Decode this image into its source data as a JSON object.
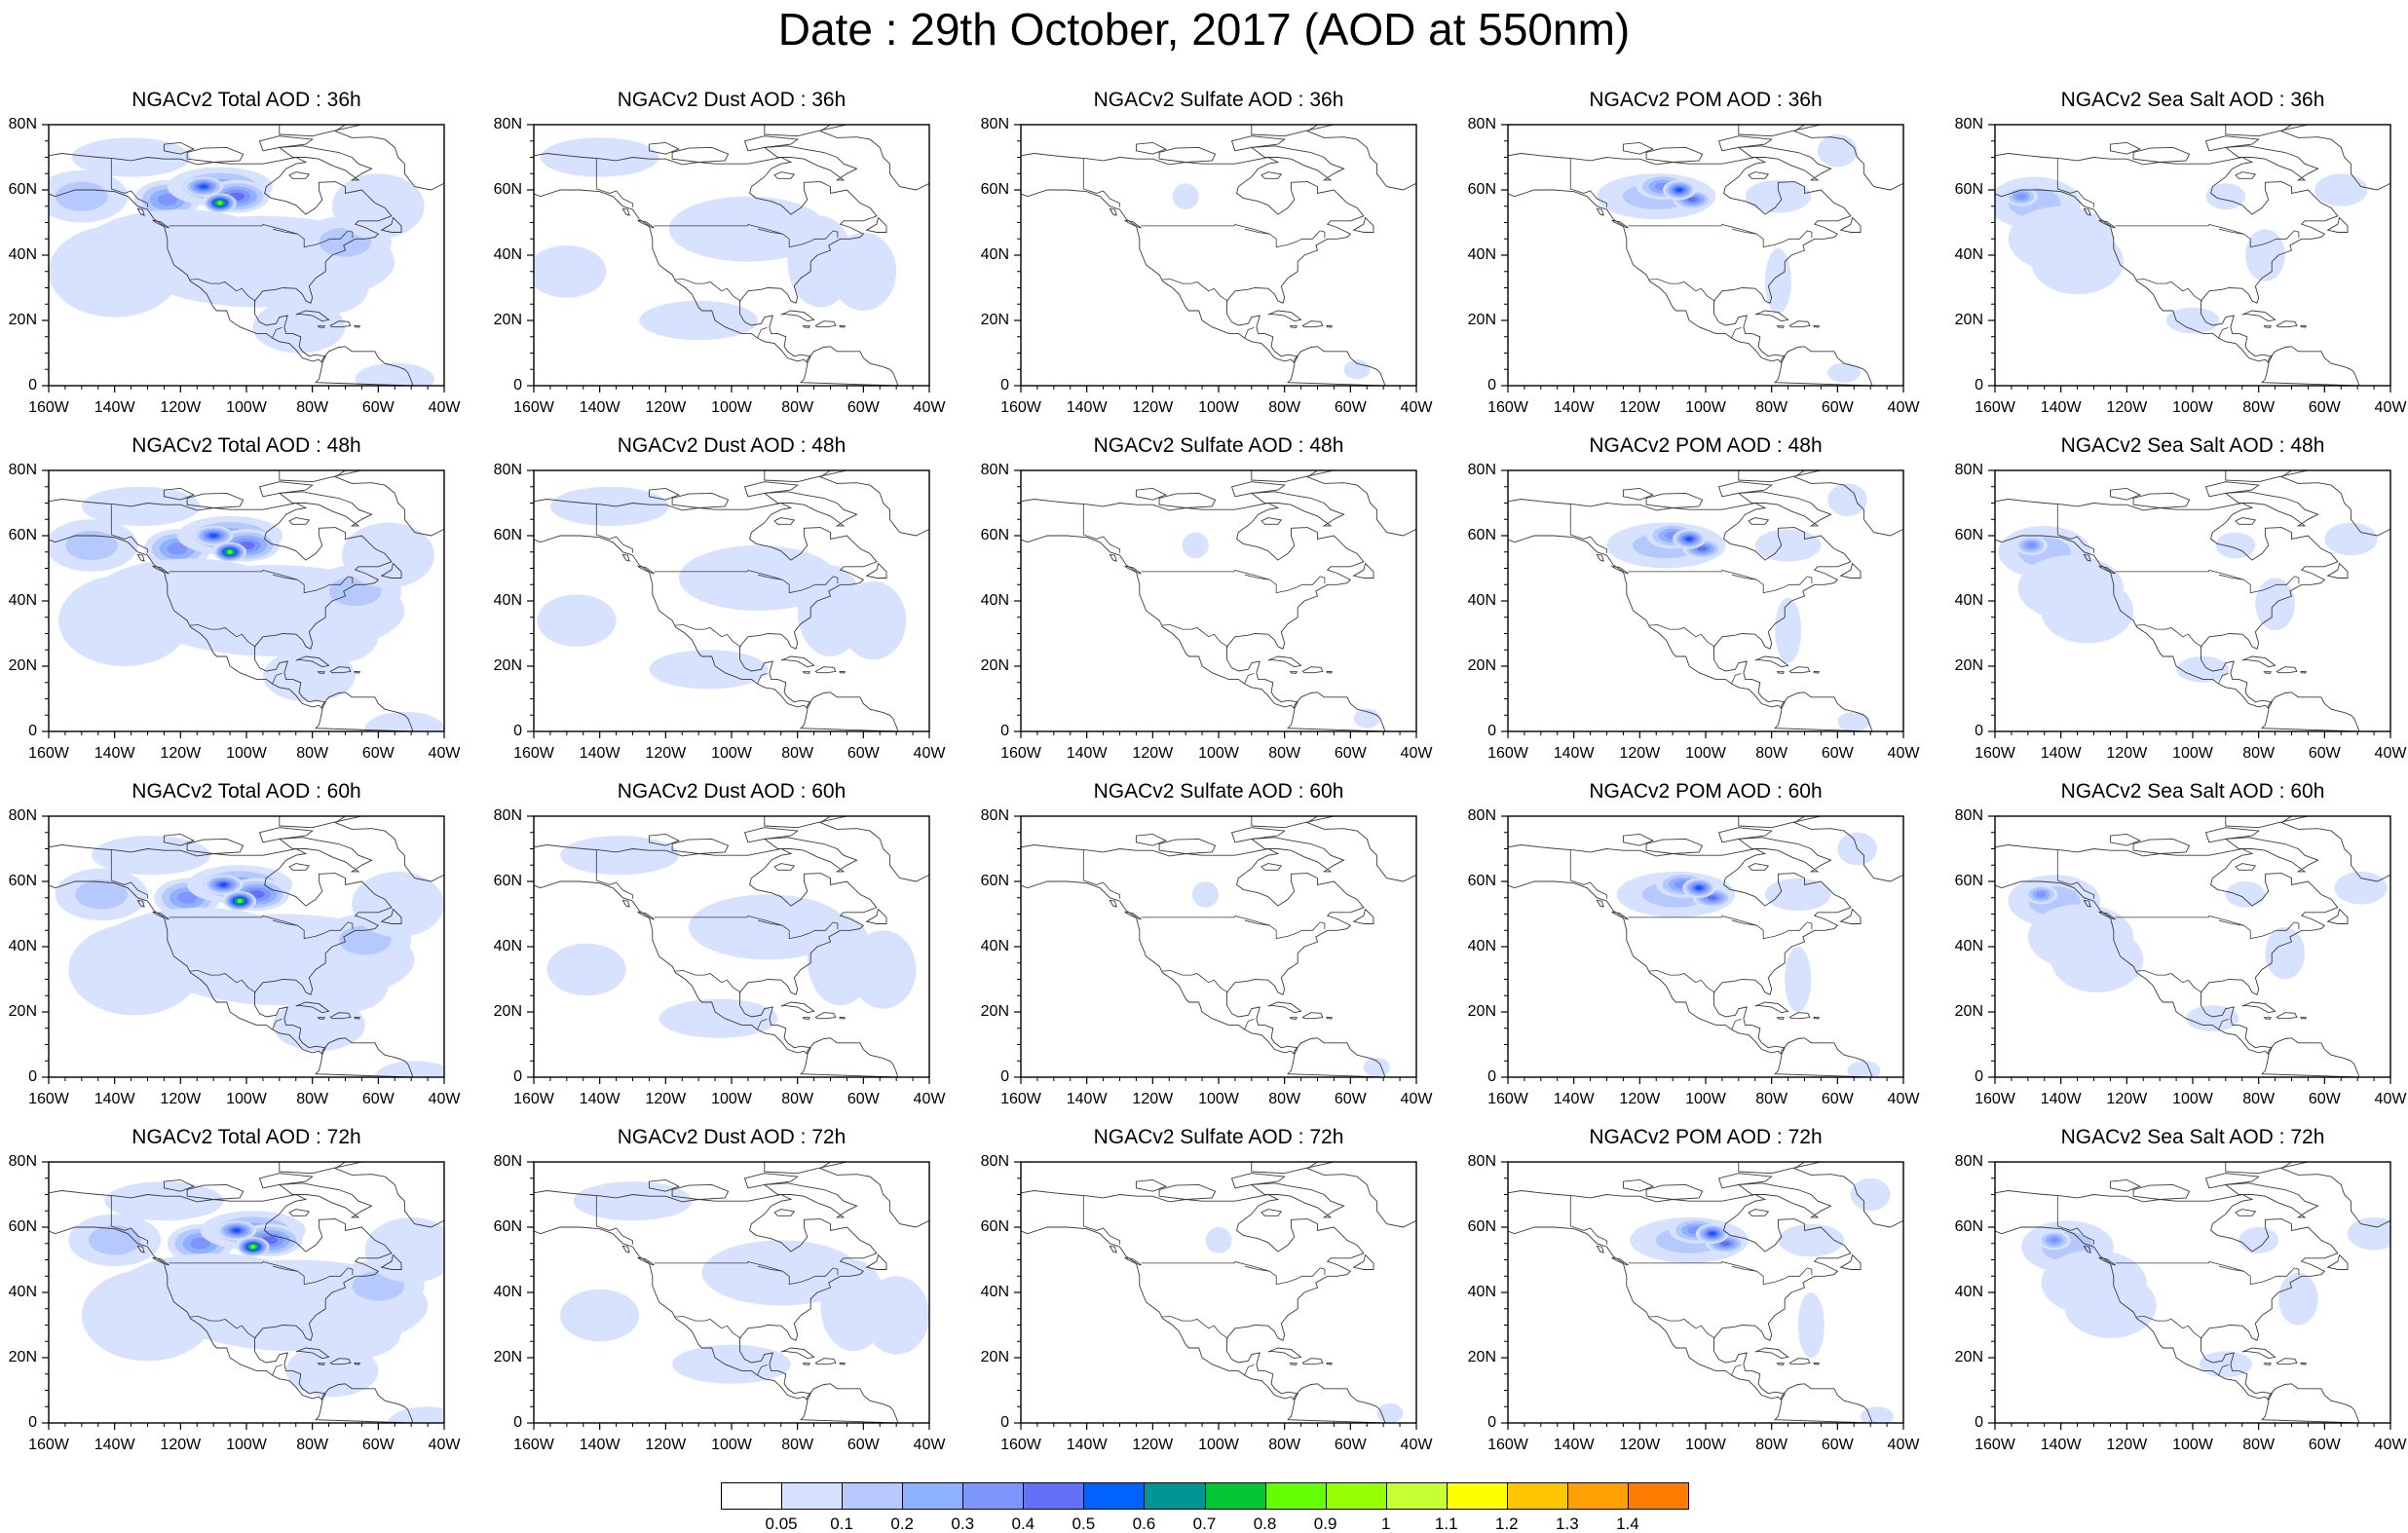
{
  "title": "Date : 29th October, 2017 (AOD at 550nm)",
  "y_ticks": [
    "80N",
    "60N",
    "40N",
    "20N",
    "0"
  ],
  "x_ticks": [
    "160W",
    "140W",
    "120W",
    "100W",
    "80W",
    "60W",
    "40W"
  ],
  "panels": [
    [
      {
        "title": "NGACv2 Total AOD : 36h",
        "species": "total"
      },
      {
        "title": "NGACv2 Dust AOD : 36h",
        "species": "dust"
      },
      {
        "title": "NGACv2 Sulfate AOD : 36h",
        "species": "sulfate"
      },
      {
        "title": "NGACv2 POM AOD : 36h",
        "species": "pom"
      },
      {
        "title": "NGACv2 Sea Salt AOD : 36h",
        "species": "seasalt"
      }
    ],
    [
      {
        "title": "NGACv2 Total AOD : 48h",
        "species": "total"
      },
      {
        "title": "NGACv2 Dust AOD : 48h",
        "species": "dust"
      },
      {
        "title": "NGACv2 Sulfate AOD : 48h",
        "species": "sulfate"
      },
      {
        "title": "NGACv2 POM AOD : 48h",
        "species": "pom"
      },
      {
        "title": "NGACv2 Sea Salt AOD : 48h",
        "species": "seasalt"
      }
    ],
    [
      {
        "title": "NGACv2 Total AOD : 60h",
        "species": "total"
      },
      {
        "title": "NGACv2 Dust AOD : 60h",
        "species": "dust"
      },
      {
        "title": "NGACv2 Sulfate AOD : 60h",
        "species": "sulfate"
      },
      {
        "title": "NGACv2 POM AOD : 60h",
        "species": "pom"
      },
      {
        "title": "NGACv2 Sea Salt AOD : 60h",
        "species": "seasalt"
      }
    ],
    [
      {
        "title": "NGACv2 Total AOD : 72h",
        "species": "total"
      },
      {
        "title": "NGACv2 Dust AOD : 72h",
        "species": "dust"
      },
      {
        "title": "NGACv2 Sulfate AOD : 72h",
        "species": "sulfate"
      },
      {
        "title": "NGACv2 POM AOD : 72h",
        "species": "pom"
      },
      {
        "title": "NGACv2 Sea Salt  AOD : 72h",
        "species": "seasalt"
      }
    ]
  ],
  "colorbar": {
    "labels": [
      "0.05",
      "0.1",
      "0.2",
      "0.3",
      "0.4",
      "0.5",
      "0.6",
      "0.7",
      "0.8",
      "0.9",
      "1",
      "1.1",
      "1.2",
      "1.3",
      "1.4"
    ],
    "colors": [
      "#ffffff",
      "#d6e2ff",
      "#b5c9ff",
      "#8eb2ff",
      "#7f96ff",
      "#6370f8",
      "#0063ff",
      "#009696",
      "#00c633",
      "#63ff00",
      "#96ff00",
      "#c6ff33",
      "#ffff00",
      "#ffc600",
      "#ffa000",
      "#ff7c00",
      "#ff1900"
    ]
  }
}
